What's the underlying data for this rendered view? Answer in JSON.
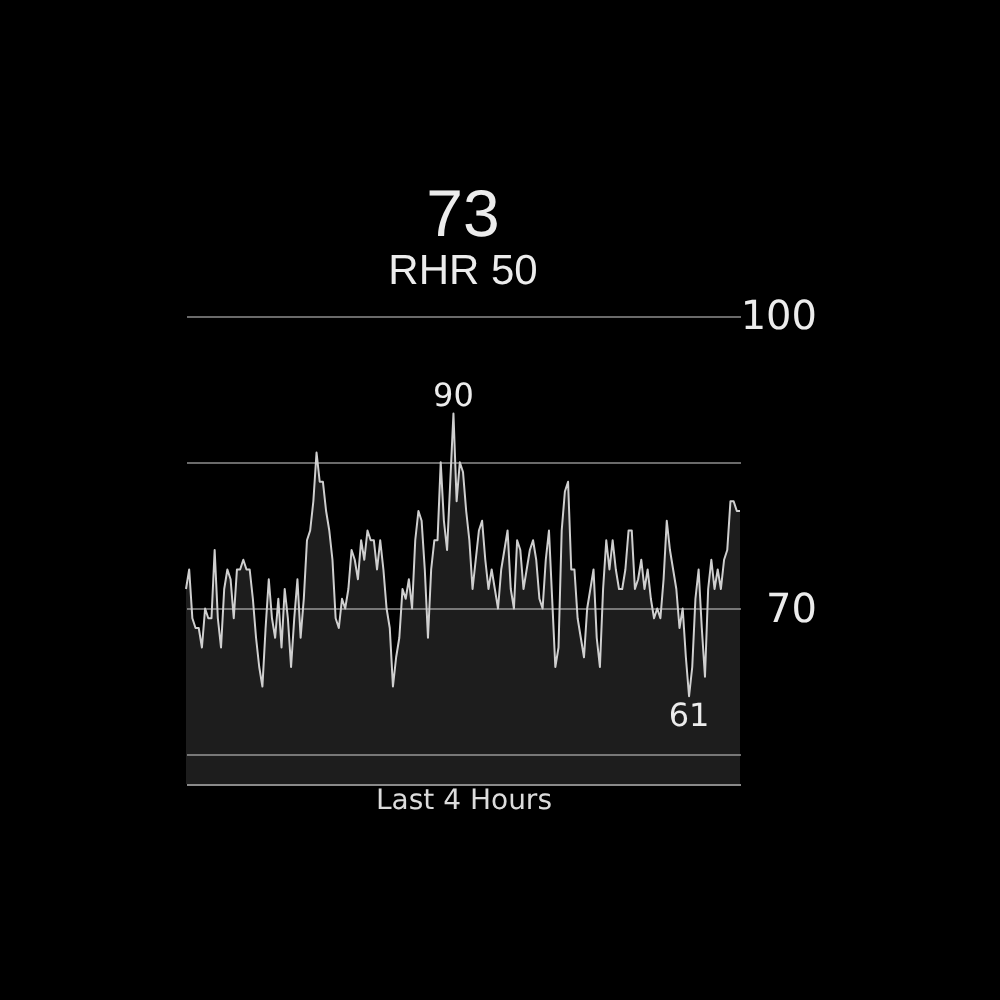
{
  "chart_data": {
    "type": "area",
    "title": "73",
    "subtitle": "RHR 50",
    "xlabel": "Last 4 Hours",
    "categories": [
      null,
      null,
      null,
      null,
      null,
      null,
      null,
      null,
      null,
      null,
      null,
      null,
      null,
      null,
      null,
      null,
      null,
      null,
      null,
      null,
      null,
      null,
      null,
      null,
      null,
      null,
      null,
      null,
      null,
      null,
      null,
      null,
      null,
      null,
      null,
      null,
      null,
      null,
      null,
      null,
      null,
      null,
      null,
      null,
      null,
      null,
      null,
      null,
      null,
      null,
      null,
      null,
      null,
      null,
      null,
      null,
      null,
      null,
      null,
      null,
      null,
      null,
      null,
      null,
      null,
      null,
      null,
      null,
      null,
      null,
      null,
      null,
      null,
      null,
      null,
      null,
      null,
      null,
      null,
      null,
      null,
      null,
      null,
      null,
      null,
      null,
      null,
      null,
      null,
      null,
      null,
      null,
      null,
      null,
      null,
      null,
      null,
      null,
      null,
      null,
      null,
      null,
      null,
      null,
      null,
      null,
      null,
      null,
      null,
      null,
      null,
      null,
      null,
      null,
      null,
      null,
      null,
      null,
      null,
      null,
      null,
      null,
      null,
      null,
      null,
      null,
      null,
      null,
      null,
      null,
      null,
      null,
      null,
      null,
      null,
      null,
      null,
      null,
      null,
      null,
      null,
      null,
      null,
      null,
      null,
      null,
      null,
      null,
      null,
      null,
      null,
      null,
      null,
      null,
      null,
      null,
      null,
      null,
      null,
      null,
      null,
      null,
      null,
      null,
      null,
      null,
      null,
      null,
      null,
      null,
      null,
      null,
      null,
      null,
      null
    ],
    "series": [
      {
        "color": "#cfcfcf",
        "values": [
          72,
          74,
          69,
          68,
          68,
          66,
          70,
          69,
          69,
          76,
          69,
          66,
          72,
          74,
          73,
          69,
          74,
          74,
          75,
          74,
          74,
          71,
          67,
          64,
          62,
          68,
          73,
          69,
          67,
          71,
          66,
          72,
          69,
          64,
          69,
          73,
          67,
          71,
          77,
          78,
          81,
          86,
          83,
          83,
          80,
          78,
          75,
          69,
          68,
          71,
          70,
          72,
          76,
          75,
          73,
          77,
          75,
          78,
          77,
          77,
          74,
          77,
          74,
          70,
          68,
          62,
          65,
          67,
          72,
          71,
          73,
          70,
          77,
          80,
          79,
          74,
          67,
          74,
          77,
          77,
          85,
          79,
          76,
          83,
          90,
          81,
          85,
          84,
          80,
          77,
          72,
          75,
          78,
          79,
          75,
          72,
          74,
          72,
          70,
          74,
          76,
          78,
          72,
          70,
          77,
          76,
          72,
          74,
          76,
          77,
          75,
          71,
          70,
          75,
          78,
          71,
          64,
          66,
          78,
          82,
          83,
          74,
          74,
          69,
          67,
          65,
          70,
          72,
          74,
          67,
          64,
          72,
          77,
          74,
          77,
          74,
          72,
          72,
          74,
          78,
          78,
          72,
          73,
          75,
          72,
          74,
          71,
          69,
          70,
          69,
          73,
          79,
          76,
          74,
          72,
          68,
          70,
          65,
          61,
          64,
          71,
          74,
          68,
          63,
          72,
          75,
          72,
          74,
          72,
          75,
          76,
          81,
          81,
          80,
          80
        ]
      }
    ],
    "ylim": [
      52,
      100
    ],
    "yticks": [
      100,
      {
        "value": 85,
        "label": null
      },
      70,
      {
        "value": 55,
        "label": null
      }
    ],
    "grid": "y",
    "tick_labels": "y",
    "annotations": [
      {
        "text": "90",
        "y": 90
      },
      {
        "text": "61",
        "y": 61
      }
    ]
  }
}
